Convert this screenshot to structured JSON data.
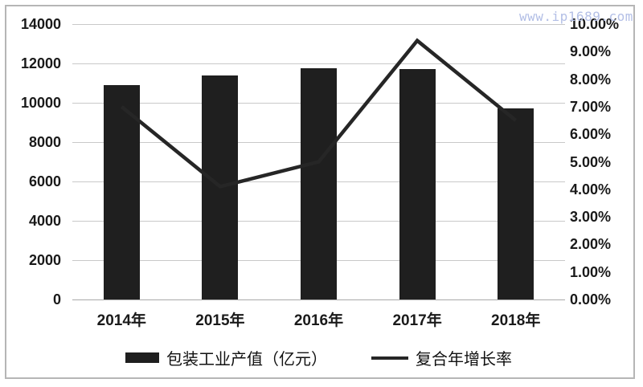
{
  "watermark": "www.ip1689.com",
  "colors": {
    "bar": "#1f1f1f",
    "line": "#262626",
    "grid": "#c9c9c9",
    "axis_line": "#a9a9a9",
    "axis_text": "#1a1a1a",
    "watermark": "#b3bfe6",
    "border": "#b6b6b6"
  },
  "chart_data": {
    "type": "bar+line combo",
    "title": "",
    "categories": [
      "2014年",
      "2015年",
      "2016年",
      "2017年",
      "2018年"
    ],
    "series": [
      {
        "name": "包装工业产值（亿元）",
        "type": "bar",
        "axis": "left",
        "values": [
          10900,
          11400,
          11750,
          11700,
          9700
        ]
      },
      {
        "name": "复合年增长率",
        "type": "line",
        "axis": "right",
        "values_percent": [
          7.0,
          4.1,
          5.0,
          9.4,
          6.5
        ]
      }
    ],
    "left_axis": {
      "min": 0,
      "max": 14000,
      "step": 2000,
      "ticks": [
        "14000",
        "12000",
        "10000",
        "8000",
        "6000",
        "4000",
        "2000",
        "0"
      ]
    },
    "right_axis": {
      "min": 0,
      "max": 10,
      "step": 1,
      "ticks": [
        "10.00%",
        "9.00%",
        "8.00%",
        "7.00%",
        "6.00%",
        "5.00%",
        "4.00%",
        "3.00%",
        "2.00%",
        "1.00%",
        "0.00%"
      ]
    },
    "grid": true,
    "legend_position": "bottom"
  },
  "legend": {
    "items": [
      {
        "label": "包装工业产值（亿元）",
        "marker": "bar-swatch"
      },
      {
        "label": "复合年增长率",
        "marker": "line-swatch"
      }
    ]
  }
}
